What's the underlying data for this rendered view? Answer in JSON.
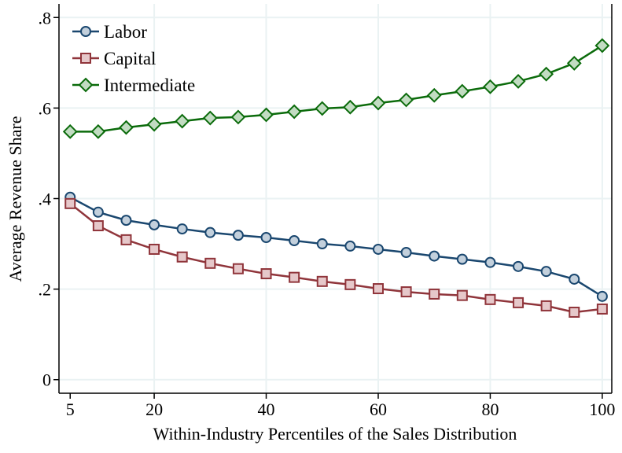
{
  "chart_data": {
    "type": "line",
    "xlabel": "Within-Industry Percentiles of the Sales Distribution",
    "ylabel": "Average Revenue Share",
    "x": [
      5,
      10,
      15,
      20,
      25,
      30,
      35,
      40,
      45,
      50,
      55,
      60,
      65,
      70,
      75,
      80,
      85,
      90,
      95,
      100
    ],
    "xticks": [
      5,
      20,
      40,
      60,
      80,
      100
    ],
    "xtick_labels": [
      "5",
      "20",
      "40",
      "60",
      "80",
      "100"
    ],
    "yticks": [
      0,
      0.2,
      0.4,
      0.6,
      0.8
    ],
    "ytick_labels": [
      "0",
      ".2",
      ".4",
      ".6",
      ".8"
    ],
    "xlim": [
      3,
      101.7
    ],
    "ylim": [
      -0.03,
      0.83
    ],
    "grid": true,
    "legend_position": "top-left",
    "series": [
      {
        "name": "Labor",
        "marker": "circle",
        "color": "#1a476f",
        "fill": "#c3d0dc",
        "values": [
          0.403,
          0.37,
          0.352,
          0.342,
          0.333,
          0.325,
          0.319,
          0.314,
          0.307,
          0.3,
          0.295,
          0.288,
          0.281,
          0.273,
          0.266,
          0.259,
          0.25,
          0.239,
          0.222,
          0.184
        ]
      },
      {
        "name": "Capital",
        "marker": "square",
        "color": "#90353b",
        "fill": "#e6c8ca",
        "values": [
          0.389,
          0.34,
          0.309,
          0.288,
          0.271,
          0.257,
          0.245,
          0.234,
          0.226,
          0.217,
          0.21,
          0.201,
          0.194,
          0.189,
          0.186,
          0.177,
          0.17,
          0.163,
          0.149,
          0.156
        ]
      },
      {
        "name": "Intermediate",
        "marker": "diamond",
        "color": "#0b6b0b",
        "fill": "#c2dcc2",
        "values": [
          0.548,
          0.548,
          0.557,
          0.564,
          0.571,
          0.578,
          0.58,
          0.585,
          0.592,
          0.599,
          0.602,
          0.611,
          0.618,
          0.628,
          0.637,
          0.647,
          0.659,
          0.675,
          0.699,
          0.738
        ]
      }
    ]
  }
}
